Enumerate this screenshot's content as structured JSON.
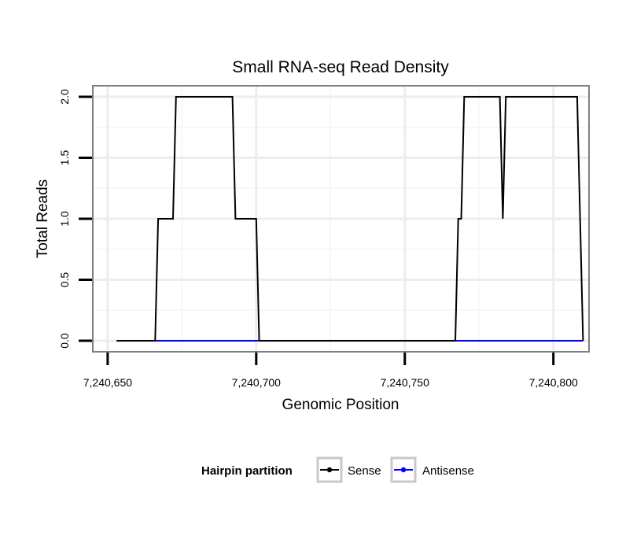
{
  "chart_data": {
    "type": "line",
    "title": "Small RNA-seq Read Density",
    "xlabel": "Genomic Position",
    "ylabel": "Total Reads",
    "xlim": [
      7240645,
      7240812
    ],
    "ylim": [
      -0.09,
      2.09
    ],
    "x_ticks": [
      7240650,
      7240700,
      7240750,
      7240800
    ],
    "x_tick_labels": [
      "7,240,650",
      "7,240,700",
      "7,240,750",
      "7,240,800"
    ],
    "y_ticks": [
      0.0,
      0.5,
      1.0,
      1.5,
      2.0
    ],
    "y_tick_labels": [
      "0.0",
      "0.5",
      "1.0",
      "1.5",
      "2.0"
    ],
    "grid": true,
    "legend": {
      "title": "Hairpin partition",
      "position": "bottom",
      "entries": [
        {
          "label": "Sense",
          "color": "#000000"
        },
        {
          "label": "Antisense",
          "color": "#0000ff"
        }
      ]
    },
    "series": [
      {
        "name": "Sense",
        "color": "#000000",
        "x": [
          7240653,
          7240666,
          7240667,
          7240672,
          7240673,
          7240692,
          7240693,
          7240700,
          7240701,
          7240767,
          7240768,
          7240769,
          7240770,
          7240782,
          7240783,
          7240784,
          7240808,
          7240810
        ],
        "y": [
          0,
          0,
          1,
          1,
          2,
          2,
          1,
          1,
          0,
          0,
          1,
          1,
          2,
          2,
          1,
          2,
          2,
          0
        ]
      },
      {
        "name": "Antisense",
        "color": "#0000ff",
        "x": [
          7240666,
          7240810
        ],
        "y": [
          0,
          0
        ]
      }
    ]
  }
}
